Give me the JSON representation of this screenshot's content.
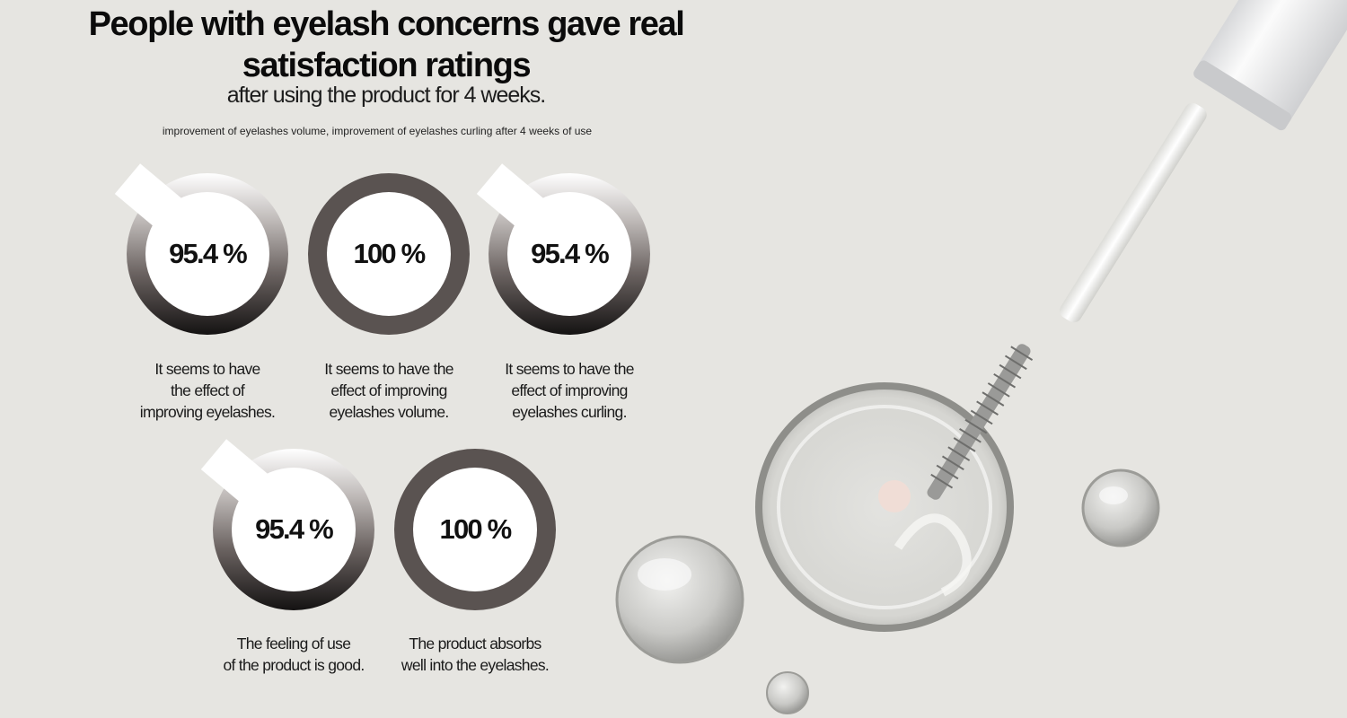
{
  "header": {
    "title_line1": "People with eyelash concerns gave real",
    "title_line2": "satisfaction ratings",
    "subtitle": "after using the product for 4 weeks.",
    "note": "improvement of eyelashes volume, improvement of eyelashes curling after 4 weeks of use"
  },
  "stats": [
    {
      "value": "95.4 %",
      "fraction": 0.954,
      "caption": [
        "It seems to have",
        "the effect of",
        "improving eyelashes."
      ]
    },
    {
      "value": "100 %",
      "fraction": 1.0,
      "caption": [
        "It seems to have the",
        "effect of improving",
        "eyelashes volume."
      ]
    },
    {
      "value": "95.4 %",
      "fraction": 0.954,
      "caption": [
        "It seems to have the",
        "effect of improving",
        "eyelashes curling."
      ]
    },
    {
      "value": "95.4 %",
      "fraction": 0.954,
      "caption": [
        "The feeling of use",
        "of the product is good."
      ]
    },
    {
      "value": "100 %",
      "fraction": 1.0,
      "caption": [
        "The product absorbs",
        "well into the eyelashes."
      ]
    }
  ],
  "colors": {
    "background": "#e6e5e1",
    "ring_full": "#5a5351",
    "ring_gradient_dark": "#141212"
  }
}
